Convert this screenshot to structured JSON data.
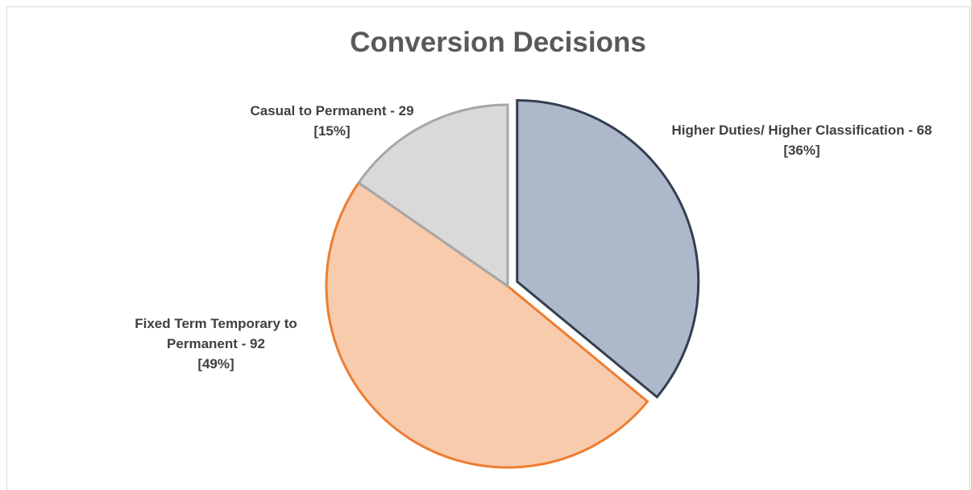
{
  "chart_data": {
    "type": "pie",
    "title": "Conversion Decisions",
    "slices": [
      {
        "label": "Higher Duties/ Higher Classification",
        "value": 68,
        "percent": 36,
        "label_lines": [
          "Higher Duties/ Higher Classification - 68",
          "[36%]"
        ],
        "fill": "#adb9ca",
        "stroke": "#333f50",
        "exploded": true
      },
      {
        "label": "Fixed Term Temporary to Permanent",
        "value": 92,
        "percent": 49,
        "label_lines": [
          "Fixed Term Temporary to",
          "Permanent - 92",
          "[49%]"
        ],
        "fill": "#f8cbad",
        "stroke": "#ed7d31",
        "exploded": false
      },
      {
        "label": "Casual to Permanent",
        "value": 29,
        "percent": 15,
        "label_lines": [
          "Casual to Permanent - 29",
          "[15%]"
        ],
        "fill": "#d9d9d9",
        "stroke": "#a6a6a6",
        "exploded": false
      }
    ],
    "start_angle_deg": 0,
    "direction": "clockwise",
    "legend": "none"
  }
}
